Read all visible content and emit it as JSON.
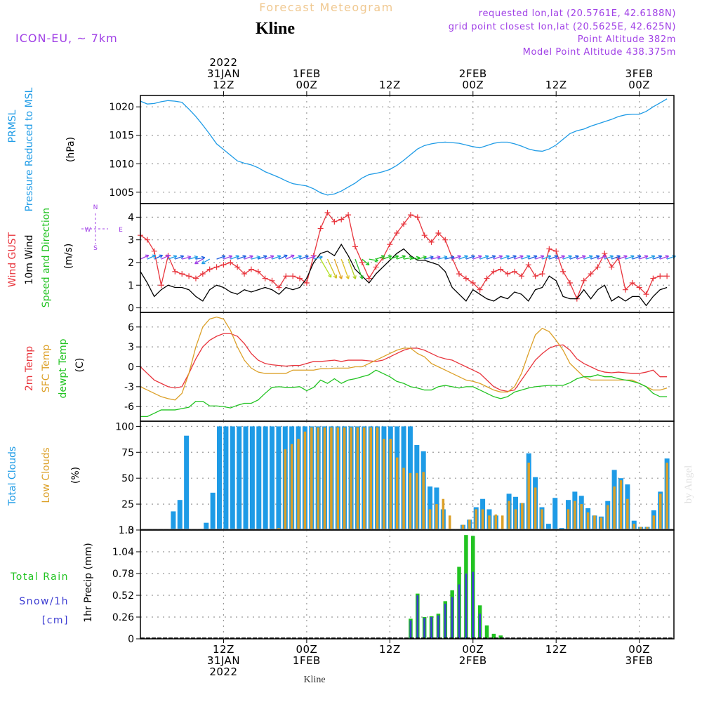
{
  "header": {
    "title_top": "Forecast Meteogram",
    "location": "Kline",
    "model": "ICON-EU, ~ 7km",
    "requested": "requested lon,lat (20.5761E, 42.6188N)",
    "gridpoint": "grid point closest lon,lat (20.5625E, 42.625N)",
    "point_alt": "Point Altitude 382m",
    "model_alt": "Model Point Altitude 438.375m"
  },
  "footer": {
    "location": "Kline",
    "credit": "by Angel"
  },
  "colors": {
    "blue": "#1e9be6",
    "red": "#e8343c",
    "orange": "#dca028",
    "green": "#21c321",
    "black": "#000000",
    "purple": "#a040e6",
    "snow": "#3c3cd2"
  },
  "chart_data": [
    {
      "type": "line",
      "panel": "pressure",
      "ylabel_1": "PRMSL",
      "ylabel_2": "Pressure Reduced to MSL",
      "unit": "(hPa)",
      "ylim": [
        1003,
        1022
      ],
      "yticks": [
        "1005",
        "1010",
        "1015",
        "1020"
      ],
      "grid": true,
      "x_hours": [
        0,
        1,
        2,
        3,
        4,
        5,
        6,
        7,
        8,
        9,
        10,
        11,
        12,
        13,
        14,
        15,
        16,
        17,
        18,
        19,
        20,
        21,
        22,
        23,
        24,
        25,
        26,
        27,
        28,
        29,
        30,
        31,
        32,
        33,
        34,
        35,
        36,
        37,
        38,
        39,
        40,
        41,
        42,
        43,
        44,
        45,
        46,
        47,
        48,
        49,
        50,
        51,
        52,
        53,
        54,
        55,
        56,
        57,
        58,
        59,
        60,
        61,
        62,
        63,
        64,
        65,
        66,
        67,
        68,
        69,
        70,
        71,
        72,
        73,
        74,
        75,
        76
      ],
      "series": [
        {
          "name": "PRMSL",
          "values": [
            1021,
            1020.5,
            1020.6,
            1020.9,
            1021.1,
            1021,
            1020.8,
            1019.6,
            1018.3,
            1016.8,
            1015.2,
            1013.5,
            1012.5,
            1011.5,
            1010.5,
            1010.1,
            1009.8,
            1009.3,
            1008.6,
            1008.1,
            1007.6,
            1007,
            1006.5,
            1006.3,
            1006.1,
            1005.6,
            1004.9,
            1004.5,
            1004.7,
            1005.2,
            1005.9,
            1006.6,
            1007.5,
            1008.1,
            1008.3,
            1008.6,
            1009,
            1009.7,
            1010.6,
            1011.6,
            1012.6,
            1013.2,
            1013.5,
            1013.7,
            1013.8,
            1013.7,
            1013.6,
            1013.3,
            1013,
            1012.8,
            1013.2,
            1013.6,
            1013.8,
            1013.8,
            1013.5,
            1013.1,
            1012.6,
            1012.3,
            1012.2,
            1012.6,
            1013.3,
            1014.3,
            1015.3,
            1015.8,
            1016.1,
            1016.6,
            1017,
            1017.4,
            1017.8,
            1018.3,
            1018.6,
            1018.7,
            1018.7,
            1019.2,
            1020,
            1020.7,
            1021.4
          ]
        }
      ]
    },
    {
      "type": "line",
      "panel": "wind",
      "ylabel_1": "Wind GUST",
      "ylabel_2": "10m Wind",
      "ylabel_3": "Speed and Direction",
      "unit": "(m/s)",
      "compass_w": "W",
      "compass_e": "E",
      "compass_n": "N",
      "compass_s": "S",
      "ylim": [
        -0.2,
        4.6
      ],
      "yticks": [
        "0",
        "1",
        "2",
        "3",
        "4"
      ],
      "grid": true,
      "series": [
        {
          "name": "Wind GUST",
          "marker": "+",
          "values": [
            3.2,
            3,
            2.5,
            1,
            2.3,
            1.6,
            1.5,
            1.4,
            1.3,
            1.5,
            1.7,
            1.8,
            1.9,
            2,
            1.8,
            1.5,
            1.7,
            1.6,
            1.3,
            1.2,
            0.9,
            1.4,
            1.4,
            1.3,
            1.1,
            2.3,
            3.5,
            4.2,
            3.8,
            3.9,
            4.1,
            2.7,
            2,
            1.3,
            1.8,
            2.2,
            2.8,
            3.3,
            3.7,
            4.1,
            4,
            3.2,
            2.9,
            3.3,
            3,
            2.2,
            1.5,
            1.3,
            1.1,
            0.8,
            1.3,
            1.6,
            1.7,
            1.5,
            1.6,
            1.4,
            1.9,
            1.4,
            1.5,
            2.6,
            2.5,
            1.6,
            1.1,
            0.4,
            1.2,
            1.5,
            1.8,
            2.4,
            1.8,
            2.2,
            0.8,
            1.1,
            0.9,
            0.6,
            1.3,
            1.4,
            1.4
          ]
        },
        {
          "name": "10m Wind",
          "values": [
            1.6,
            1.1,
            0.5,
            0.8,
            1,
            0.9,
            0.9,
            0.8,
            0.5,
            0.3,
            0.8,
            1,
            0.9,
            0.7,
            0.6,
            0.8,
            0.7,
            0.8,
            0.9,
            0.8,
            0.6,
            0.9,
            0.8,
            0.9,
            1.3,
            2,
            2.4,
            2.5,
            2.3,
            2.8,
            2.3,
            1.7,
            1.4,
            1.1,
            1.5,
            1.8,
            2.1,
            2.4,
            2.6,
            2.3,
            2.1,
            2.1,
            2,
            1.9,
            1.6,
            0.9,
            0.6,
            0.3,
            0.8,
            0.6,
            0.4,
            0.3,
            0.5,
            0.4,
            0.7,
            0.6,
            0.3,
            0.8,
            0.9,
            1.4,
            1.2,
            0.5,
            0.4,
            0.4,
            0.8,
            0.4,
            0.8,
            1,
            0.3,
            0.5,
            0.3,
            0.5,
            0.5,
            0.1,
            0.5,
            0.8,
            0.9
          ]
        },
        {
          "name": "Direction",
          "arrow_dir_deg": [
            245,
            245,
            245,
            245,
            250,
            250,
            255,
            255,
            260,
            60,
            60,
            250,
            250,
            250,
            250,
            250,
            255,
            250,
            250,
            250,
            245,
            245,
            250,
            250,
            250,
            255,
            330,
            335,
            340,
            340,
            340,
            340,
            310,
            280,
            250,
            250,
            250,
            250,
            260,
            260,
            255,
            255,
            255,
            255,
            255,
            250,
            250,
            250,
            250,
            250,
            250,
            250,
            250,
            250,
            250,
            250,
            250,
            250,
            250,
            250,
            250,
            250,
            250,
            250,
            250,
            250,
            250,
            250,
            250,
            250,
            250,
            250,
            250,
            250,
            250,
            250,
            250
          ]
        }
      ]
    },
    {
      "type": "line",
      "panel": "temperature",
      "ylabel_1": "2m Temp",
      "ylabel_2": "SFC Temp",
      "ylabel_3": "dewpt Temp",
      "unit": "(C)",
      "ylim": [
        -8.2,
        8.2
      ],
      "yticks": [
        "-6",
        "-3",
        "0",
        "3",
        "6"
      ],
      "grid": true,
      "series": [
        {
          "name": "2m Temp",
          "values": [
            0,
            -1,
            -2,
            -2.5,
            -3,
            -3.2,
            -3,
            -1,
            1.2,
            3,
            4,
            4.6,
            5,
            5,
            4.6,
            3.5,
            2,
            1,
            0.5,
            0.3,
            0.2,
            0.1,
            0.2,
            0.2,
            0.5,
            0.8,
            0.8,
            0.9,
            1,
            0.8,
            1,
            1,
            1,
            0.9,
            0.8,
            1,
            1.5,
            2,
            2.5,
            2.8,
            2.8,
            2.5,
            2,
            1.5,
            1.2,
            1,
            0.5,
            0,
            -0.5,
            -1,
            -2,
            -3,
            -3.5,
            -3.7,
            -3.5,
            -2,
            -0.5,
            1,
            2,
            2.8,
            3.2,
            3.3,
            2.5,
            1.2,
            0.5,
            0,
            -0.5,
            -0.8,
            -0.9,
            -0.8,
            -0.9,
            -1,
            -1,
            -0.8,
            -0.5,
            -1.5,
            -1.5
          ]
        },
        {
          "name": "SFC Temp",
          "values": [
            -3,
            -3.5,
            -4,
            -4.5,
            -4.8,
            -5,
            -4,
            -1,
            3,
            6,
            7.2,
            7.5,
            7.2,
            5.5,
            3,
            1,
            -0.2,
            -0.8,
            -1,
            -1,
            -1,
            -1,
            -0.5,
            -0.5,
            -0.5,
            -0.5,
            -0.3,
            -0.3,
            -0.2,
            -0.2,
            -0.2,
            0,
            0,
            0.5,
            1,
            1.5,
            2,
            2.5,
            2.8,
            2.8,
            2,
            1.5,
            0.5,
            0,
            -0.5,
            -1,
            -1.5,
            -2,
            -2.2,
            -2.5,
            -3,
            -3.5,
            -3.8,
            -3.8,
            -3,
            -1,
            2,
            4.8,
            5.8,
            5.3,
            4,
            2.5,
            0.5,
            -0.5,
            -1.5,
            -2,
            -2,
            -2,
            -2,
            -2,
            -2,
            -2,
            -2.5,
            -3,
            -3.5,
            -3.5,
            -3.2
          ]
        },
        {
          "name": "dewpt Temp",
          "values": [
            -7.5,
            -7.5,
            -7,
            -6.5,
            -6.5,
            -6.5,
            -6.3,
            -6.1,
            -5.2,
            -5.2,
            -5.9,
            -5.9,
            -6,
            -6.2,
            -5.8,
            -5.5,
            -5.5,
            -5,
            -4,
            -3.1,
            -3,
            -3.1,
            -3.1,
            -3,
            -3.6,
            -3.1,
            -2,
            -2.5,
            -1.8,
            -2.5,
            -2,
            -1.8,
            -1.5,
            -1.2,
            -0.5,
            -1,
            -1.5,
            -2.2,
            -2.5,
            -3,
            -3.2,
            -3.5,
            -3.5,
            -3,
            -2.8,
            -3,
            -3.2,
            -3,
            -3,
            -3.5,
            -4,
            -4.5,
            -4.8,
            -4.5,
            -3.8,
            -3.5,
            -3.2,
            -3,
            -2.9,
            -2.8,
            -2.8,
            -2.8,
            -2.4,
            -1.8,
            -1.5,
            -1.5,
            -1.2,
            -1.5,
            -1.5,
            -1.8,
            -2,
            -2.2,
            -2.5,
            -3,
            -4,
            -4.5,
            -4.5
          ]
        }
      ]
    },
    {
      "type": "bar",
      "panel": "clouds",
      "ylabel_1": "Total Clouds",
      "ylabel_2": "Low Clouds",
      "unit": "(%)",
      "ylim": [
        0,
        105
      ],
      "yticks": [
        "0",
        "25",
        "50",
        "75",
        "100"
      ],
      "grid": true,
      "series": [
        {
          "name": "Total Clouds",
          "values": [
            0,
            0,
            0,
            0,
            0,
            18,
            29,
            91,
            0,
            0,
            7,
            36,
            100,
            100,
            100,
            100,
            100,
            100,
            100,
            100,
            100,
            100,
            100,
            100,
            100,
            100,
            100,
            100,
            100,
            100,
            100,
            100,
            100,
            100,
            100,
            100,
            100,
            100,
            100,
            100,
            100,
            100,
            82,
            76,
            42,
            41,
            20,
            0,
            0,
            5,
            10,
            22,
            30,
            20,
            14,
            0,
            35,
            32,
            26,
            74,
            51,
            22,
            6,
            31,
            2,
            29,
            37,
            33,
            21,
            14,
            13,
            28,
            58,
            50,
            44,
            9,
            3,
            3,
            19,
            37,
            69
          ]
        },
        {
          "name": "Low Clouds",
          "values": [
            0,
            0,
            0,
            0,
            0,
            0,
            0,
            0,
            0,
            0,
            0,
            0,
            0,
            0,
            0,
            0,
            0,
            0,
            0,
            0,
            0,
            2,
            78,
            83,
            88,
            95,
            99,
            99,
            99,
            99,
            99,
            99,
            99,
            99,
            99,
            99,
            99,
            88,
            88,
            70,
            60,
            55,
            55,
            56,
            20,
            25,
            30,
            14,
            0,
            5,
            10,
            20,
            20,
            14,
            15,
            14,
            28,
            20,
            26,
            65,
            41,
            20,
            0,
            0,
            0,
            20,
            28,
            25,
            17,
            14,
            12,
            24,
            42,
            48,
            30,
            6,
            3,
            3,
            14,
            35,
            65
          ]
        }
      ]
    },
    {
      "type": "bar",
      "panel": "precip",
      "ylabel_1": "Total Rain",
      "ylabel_2": "Snow/1h",
      "ylabel_3": "[cm]",
      "ylabel_4": "1hr Precip (mm)",
      "ylim": [
        0,
        1.3
      ],
      "yticks": [
        "0",
        "0.26",
        "0.52",
        "0.78",
        "1.04",
        "1.3"
      ],
      "grid": true,
      "series": [
        {
          "name": "Total Rain",
          "values": [
            0,
            0,
            0,
            0,
            0,
            0,
            0,
            0,
            0,
            0,
            0,
            0,
            0,
            0,
            0,
            0,
            0,
            0,
            0,
            0,
            0,
            0,
            0,
            0.24,
            0.54,
            0.26,
            0.27,
            0.3,
            0.45,
            0.58,
            0.86,
            1.24,
            1.23,
            0.4,
            0.16,
            0.06,
            0.04,
            0,
            0
          ]
        },
        {
          "name": "Snow/1h",
          "values": [
            0,
            0,
            0,
            0,
            0,
            0,
            0,
            0,
            0,
            0,
            0,
            0,
            0,
            0,
            0,
            0,
            0,
            0,
            0,
            0,
            0,
            0,
            0,
            0.22,
            0.52,
            0.25,
            0.26,
            0.28,
            0.42,
            0.5,
            0.65,
            0.78,
            0.8,
            0.3,
            0,
            0,
            0,
            0,
            0
          ]
        }
      ]
    }
  ],
  "time_axis": {
    "top_labels": [
      {
        "l1": "2022",
        "l2": "31JAN",
        "l3": "12Z",
        "h": 12
      },
      {
        "l1": "",
        "l2": "1FEB",
        "l3": "00Z",
        "h": 24
      },
      {
        "l1": "",
        "l2": "",
        "l3": "12Z",
        "h": 36
      },
      {
        "l1": "",
        "l2": "2FEB",
        "l3": "00Z",
        "h": 48
      },
      {
        "l1": "",
        "l2": "",
        "l3": "12Z",
        "h": 60
      },
      {
        "l1": "",
        "l2": "3FEB",
        "l3": "00Z",
        "h": 72
      }
    ],
    "bottom_labels": [
      {
        "l1": "12Z",
        "l2": "31JAN",
        "l3": "2022",
        "h": 12
      },
      {
        "l1": "00Z",
        "l2": "1FEB",
        "l3": "",
        "h": 24
      },
      {
        "l1": "12Z",
        "l2": "",
        "l3": "",
        "h": 36
      },
      {
        "l1": "00Z",
        "l2": "2FEB",
        "l3": "",
        "h": 48
      },
      {
        "l1": "12Z",
        "l2": "",
        "l3": "",
        "h": 60
      },
      {
        "l1": "00Z",
        "l2": "3FEB",
        "l3": "",
        "h": 72
      }
    ]
  }
}
